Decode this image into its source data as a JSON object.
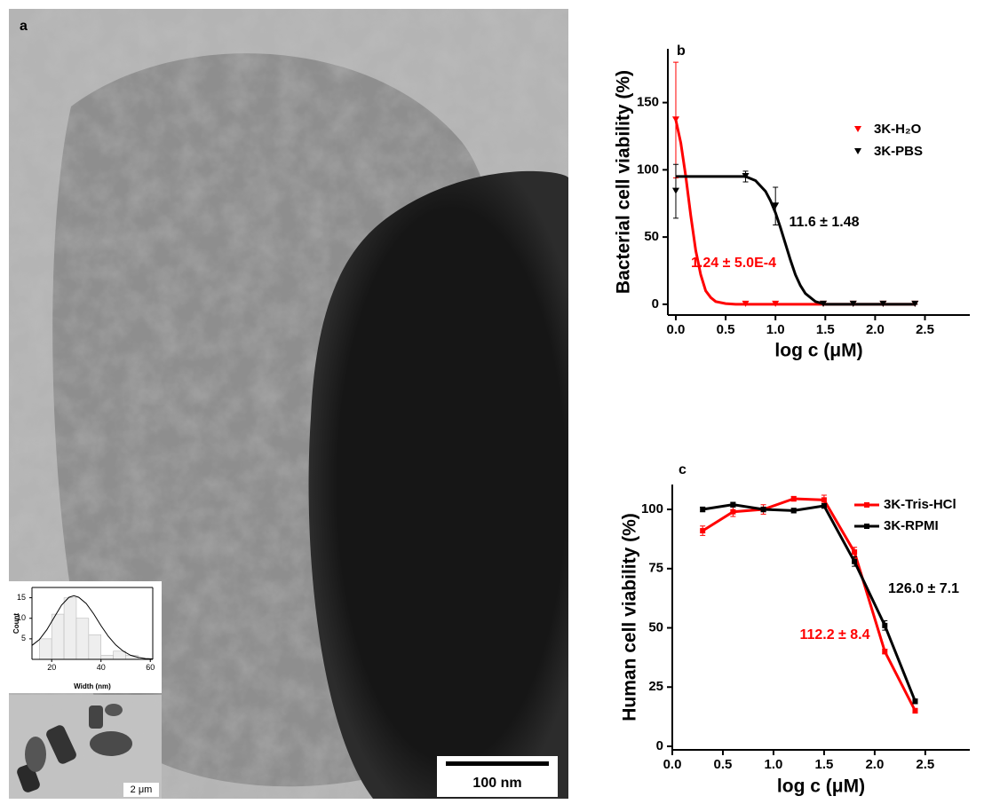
{
  "tem_image": {
    "label": "a",
    "scale_bar": "100 nm"
  },
  "inset_image": {
    "scale_bar": "2 μm"
  },
  "chart_data": [
    {
      "type": "scatter",
      "label": "b",
      "x_label": "log c (μM)",
      "y_label": "Bacterial cell viability (%)",
      "x": [
        0,
        0.7,
        1.0,
        1.48,
        1.78,
        2.08,
        2.4
      ],
      "series": [
        {
          "name": "3K-H₂O",
          "color": "#ff0000",
          "marker": "triangle-down",
          "values": [
            137,
            0,
            0,
            0,
            0,
            0,
            0
          ],
          "errors": [
            43,
            0,
            0,
            0,
            0,
            0,
            0
          ]
        },
        {
          "name": "3K-PBS",
          "color": "#000000",
          "marker": "triangle-down",
          "values": [
            84,
            95,
            73,
            0,
            0,
            0,
            0
          ],
          "errors": [
            20,
            4,
            14,
            0,
            0,
            0,
            0
          ]
        }
      ],
      "fits": [
        {
          "color": "#ff0000",
          "x": [
            0,
            0.05,
            0.1,
            0.15,
            0.2,
            0.25,
            0.3,
            0.35,
            0.4,
            0.5,
            0.6,
            2.4
          ],
          "values": [
            137,
            120,
            95,
            66,
            40,
            22,
            10,
            5,
            2,
            0.5,
            0,
            0
          ]
        },
        {
          "color": "#000000",
          "x": [
            0,
            0.7,
            0.8,
            0.9,
            0.95,
            1.0,
            1.05,
            1.1,
            1.15,
            1.2,
            1.25,
            1.3,
            1.4,
            1.5,
            2.4
          ],
          "values": [
            95,
            95,
            92,
            84,
            77,
            68,
            57,
            45,
            33,
            22,
            14,
            8,
            2,
            0,
            0
          ]
        }
      ],
      "annotations": [
        {
          "text": "11.6 ± 1.48",
          "color": "#000000"
        },
        {
          "text": "1.24 ± 5.0E-4",
          "color": "#ff0000"
        }
      ],
      "xlim": [
        -0.08,
        2.95
      ],
      "ylim": [
        -8,
        190
      ],
      "xticks": [
        {
          "value": 0,
          "label": "0.0"
        },
        {
          "value": 0.5,
          "label": "0.5"
        },
        {
          "value": 1,
          "label": "1.0"
        },
        {
          "value": 1.5,
          "label": "1.5"
        },
        {
          "value": 2,
          "label": "2.0"
        },
        {
          "value": 2.5,
          "label": "2.5"
        }
      ],
      "yticks": [
        0,
        50,
        100,
        150
      ]
    },
    {
      "type": "line",
      "label": "c",
      "x_label": "log c (μM)",
      "y_label": "Human cell viability (%)",
      "x": [
        0.3,
        0.6,
        0.9,
        1.2,
        1.5,
        1.8,
        2.1,
        2.4
      ],
      "series": [
        {
          "name": "3K-Tris-HCl",
          "color": "#ff0000",
          "marker": "square",
          "values": [
            91,
            99,
            100,
            104.5,
            104,
            82,
            40,
            15
          ],
          "errors": [
            2,
            2,
            2,
            1,
            2,
            2,
            1,
            1
          ]
        },
        {
          "name": "3K-RPMI",
          "color": "#000000",
          "marker": "square",
          "values": [
            100,
            102,
            100,
            99.5,
            101.5,
            78,
            51,
            19
          ],
          "errors": [
            1,
            1,
            1,
            1,
            1,
            2,
            2,
            1
          ]
        }
      ],
      "annotations": [
        {
          "text": "126.0 ± 7.1",
          "color": "#000000"
        },
        {
          "text": "112.2 ± 8.4",
          "color": "#ff0000"
        }
      ],
      "xlim": [
        0,
        2.94
      ],
      "ylim": [
        -1.5,
        110.5
      ],
      "xticks": [
        {
          "value": 0,
          "label": "0.0"
        },
        {
          "value": 0.5,
          "label": "0.5"
        },
        {
          "value": 1,
          "label": "1.0"
        },
        {
          "value": 1.5,
          "label": "1.5"
        },
        {
          "value": 2,
          "label": "2.0"
        },
        {
          "value": 2.5,
          "label": "2.5"
        }
      ],
      "yticks": [
        0,
        25,
        50,
        75,
        100
      ]
    },
    {
      "type": "histogram",
      "x_label": "Width (nm)",
      "y_label": "Count",
      "bins": [
        15,
        20,
        25,
        30,
        35,
        40,
        45,
        50,
        55
      ],
      "counts": [
        5,
        11,
        15,
        10,
        6,
        1,
        2,
        1
      ],
      "color": "#eeeeee",
      "fits": [
        {
          "color": "#000000",
          "x": [
            12,
            15,
            18,
            21,
            24,
            27,
            29,
            31,
            34,
            37,
            40,
            43,
            46,
            49,
            52,
            55,
            58,
            61
          ],
          "values": [
            3.4,
            4.8,
            7.2,
            10.2,
            13.2,
            15.1,
            15.5,
            15.1,
            13.6,
            11.1,
            8.2,
            5.6,
            3.5,
            2.0,
            1.0,
            0.5,
            0.2,
            0.1
          ]
        }
      ],
      "xlim": [
        12,
        61
      ],
      "ylim": [
        0,
        17.5
      ],
      "xticks": [
        20,
        40,
        60
      ],
      "yticks": [
        5,
        10,
        15
      ]
    }
  ]
}
